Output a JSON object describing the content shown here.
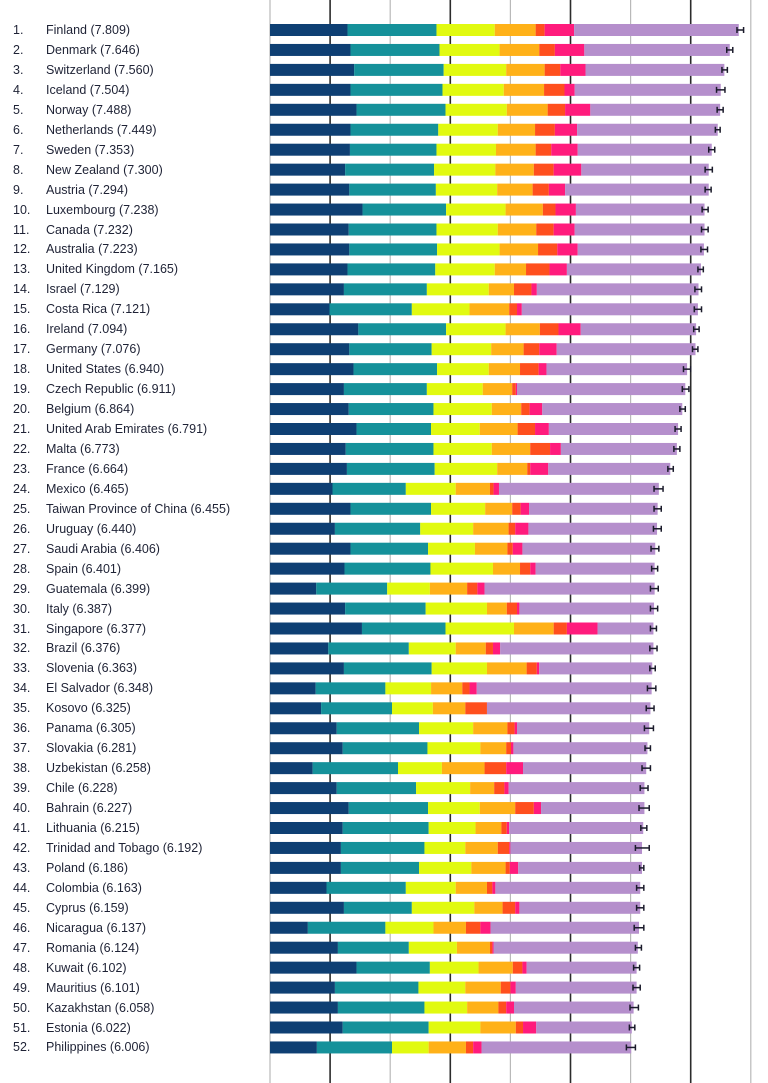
{
  "chart_data": {
    "type": "bar",
    "orientation": "horizontal",
    "stacked": true,
    "title": "",
    "xlabel": "",
    "ylabel": "",
    "xlim": [
      0,
      8.3
    ],
    "grid": true,
    "gridlines_at": [
      0,
      1,
      2,
      3,
      4,
      5,
      6,
      7,
      8
    ],
    "legend": "none",
    "segment_colors": [
      "#0e3f73",
      "#15919a",
      "#e1fa10",
      "#ffb118",
      "#ff4f1d",
      "#ff1b7c",
      "#b58fcc"
    ],
    "segment_names": [
      "segment-1",
      "segment-2",
      "segment-3",
      "segment-4",
      "segment-5",
      "segment-6",
      "segment-7"
    ],
    "rows": [
      {
        "rank": "1.",
        "country": "Finland",
        "score": "7.809",
        "segs": [
          1.29,
          1.48,
          0.97,
          0.68,
          0.15,
          0.49,
          2.74
        ],
        "err": [
          7.77,
          7.88
        ]
      },
      {
        "rank": "2.",
        "country": "Denmark",
        "score": "7.646",
        "segs": [
          1.34,
          1.48,
          1.0,
          0.66,
          0.26,
          0.49,
          2.42
        ],
        "err": [
          7.6,
          7.7
        ]
      },
      {
        "rank": "3.",
        "country": "Switzerland",
        "score": "7.560",
        "segs": [
          1.4,
          1.49,
          1.04,
          0.64,
          0.26,
          0.42,
          2.31
        ],
        "err": [
          7.52,
          7.61
        ]
      },
      {
        "rank": "4.",
        "country": "Iceland",
        "score": "7.504",
        "segs": [
          1.34,
          1.53,
          1.02,
          0.67,
          0.34,
          0.17,
          2.43
        ],
        "err": [
          7.43,
          7.57
        ]
      },
      {
        "rank": "5.",
        "country": "Norway",
        "score": "7.488",
        "segs": [
          1.44,
          1.48,
          1.02,
          0.68,
          0.29,
          0.42,
          2.16
        ],
        "err": [
          7.44,
          7.54
        ]
      },
      {
        "rank": "6.",
        "country": "Netherlands",
        "score": "7.449",
        "segs": [
          1.34,
          1.46,
          0.99,
          0.62,
          0.33,
          0.37,
          2.34
        ],
        "err": [
          7.41,
          7.49
        ]
      },
      {
        "rank": "7.",
        "country": "Sweden",
        "score": "7.353",
        "segs": [
          1.33,
          1.44,
          0.99,
          0.66,
          0.26,
          0.44,
          2.23
        ],
        "err": [
          7.3,
          7.4
        ]
      },
      {
        "rank": "8.",
        "country": "New Zealand",
        "score": "7.300",
        "segs": [
          1.25,
          1.48,
          1.02,
          0.64,
          0.33,
          0.46,
          2.12
        ],
        "err": [
          7.24,
          7.36
        ]
      },
      {
        "rank": "9.",
        "country": "Austria",
        "score": "7.294",
        "segs": [
          1.32,
          1.44,
          1.02,
          0.59,
          0.27,
          0.27,
          2.39
        ],
        "err": [
          7.24,
          7.34
        ]
      },
      {
        "rank": "10.",
        "country": "Luxembourg",
        "score": "7.238",
        "segs": [
          1.54,
          1.39,
          0.99,
          0.62,
          0.21,
          0.34,
          2.14
        ],
        "err": [
          7.19,
          7.29
        ]
      },
      {
        "rank": "11.",
        "country": "Canada",
        "score": "7.232",
        "segs": [
          1.31,
          1.46,
          1.02,
          0.64,
          0.29,
          0.35,
          2.16
        ],
        "err": [
          7.18,
          7.29
        ]
      },
      {
        "rank": "12.",
        "country": "Australia",
        "score": "7.223",
        "segs": [
          1.32,
          1.46,
          1.04,
          0.64,
          0.32,
          0.34,
          2.1
        ],
        "err": [
          7.17,
          7.28
        ]
      },
      {
        "rank": "13.",
        "country": "United Kingdom",
        "score": "7.165",
        "segs": [
          1.29,
          1.46,
          0.99,
          0.52,
          0.39,
          0.29,
          2.23
        ],
        "err": [
          7.12,
          7.21
        ]
      },
      {
        "rank": "14.",
        "country": "Israel",
        "score": "7.129",
        "segs": [
          1.23,
          1.38,
          1.03,
          0.42,
          0.29,
          0.09,
          2.69
        ],
        "err": [
          7.07,
          7.18
        ]
      },
      {
        "rank": "15.",
        "country": "Costa Rica",
        "score": "7.121",
        "segs": [
          0.99,
          1.37,
          0.96,
          0.66,
          0.13,
          0.08,
          2.93
        ],
        "err": [
          7.06,
          7.18
        ]
      },
      {
        "rank": "16.",
        "country": "Ireland",
        "score": "7.094",
        "segs": [
          1.47,
          1.46,
          0.99,
          0.57,
          0.31,
          0.37,
          1.92
        ],
        "err": [
          7.05,
          7.14
        ]
      },
      {
        "rank": "17.",
        "country": "Germany",
        "score": "7.076",
        "segs": [
          1.32,
          1.37,
          0.99,
          0.54,
          0.26,
          0.29,
          2.31
        ],
        "err": [
          7.03,
          7.12
        ]
      },
      {
        "rank": "18.",
        "country": "United States",
        "score": "6.940",
        "segs": [
          1.39,
          1.39,
          0.86,
          0.52,
          0.31,
          0.13,
          2.34
        ],
        "err": [
          6.88,
          7.0
        ]
      },
      {
        "rank": "19.",
        "country": "Czech Republic",
        "score": "6.911",
        "segs": [
          1.23,
          1.38,
          0.93,
          0.49,
          0.06,
          0.02,
          2.8
        ],
        "err": [
          6.86,
          6.97
        ]
      },
      {
        "rank": "20.",
        "country": "Belgium",
        "score": "6.864",
        "segs": [
          1.31,
          1.41,
          0.97,
          0.49,
          0.14,
          0.21,
          2.33
        ],
        "err": [
          6.82,
          6.91
        ]
      },
      {
        "rank": "21.",
        "country": "United Arab Emirates",
        "score": "6.791",
        "segs": [
          1.44,
          1.24,
          0.81,
          0.63,
          0.29,
          0.23,
          2.15
        ],
        "err": [
          6.74,
          6.84
        ]
      },
      {
        "rank": "22.",
        "country": "Malta",
        "score": "6.773",
        "segs": [
          1.26,
          1.46,
          0.97,
          0.64,
          0.33,
          0.18,
          1.93
        ],
        "err": [
          6.72,
          6.82
        ]
      },
      {
        "rank": "23.",
        "country": "France",
        "score": "6.664",
        "segs": [
          1.28,
          1.46,
          1.04,
          0.5,
          0.05,
          0.3,
          2.03
        ],
        "err": [
          6.62,
          6.71
        ]
      },
      {
        "rank": "24.",
        "country": "Mexico",
        "score": "6.465",
        "segs": [
          1.04,
          1.22,
          0.83,
          0.57,
          0.06,
          0.09,
          2.66
        ],
        "err": [
          6.39,
          6.54
        ]
      },
      {
        "rank": "25.",
        "country": "Taiwan Province of China",
        "score": "6.455",
        "segs": [
          1.34,
          1.34,
          0.9,
          0.45,
          0.14,
          0.14,
          2.14
        ],
        "err": [
          6.39,
          6.51
        ]
      },
      {
        "rank": "26.",
        "country": "Uruguay",
        "score": "6.440",
        "segs": [
          1.08,
          1.42,
          0.88,
          0.59,
          0.11,
          0.22,
          2.14
        ],
        "err": [
          6.38,
          6.51
        ]
      },
      {
        "rank": "27.",
        "country": "Saudi Arabia",
        "score": "6.406",
        "segs": [
          1.34,
          1.29,
          0.78,
          0.54,
          0.09,
          0.16,
          2.21
        ],
        "err": [
          6.34,
          6.47
        ]
      },
      {
        "rank": "28.",
        "country": "Spain",
        "score": "6.401",
        "segs": [
          1.24,
          1.43,
          1.04,
          0.45,
          0.17,
          0.09,
          1.98
        ],
        "err": [
          6.35,
          6.45
        ]
      },
      {
        "rank": "29.",
        "country": "Guatemala",
        "score": "6.399",
        "segs": [
          0.77,
          1.18,
          0.71,
          0.62,
          0.17,
          0.12,
          2.83
        ],
        "err": [
          6.33,
          6.46
        ]
      },
      {
        "rank": "30.",
        "country": "Italy",
        "score": "6.387",
        "segs": [
          1.25,
          1.34,
          1.02,
          0.33,
          0.17,
          0.04,
          2.24
        ],
        "err": [
          6.33,
          6.45
        ]
      },
      {
        "rank": "31.",
        "country": "Singapore",
        "score": "6.377",
        "segs": [
          1.53,
          1.39,
          1.14,
          0.66,
          0.22,
          0.51,
          0.93
        ],
        "err": [
          6.33,
          6.43
        ]
      },
      {
        "rank": "32.",
        "country": "Brazil",
        "score": "6.376",
        "segs": [
          0.97,
          1.34,
          0.78,
          0.5,
          0.12,
          0.12,
          2.55
        ],
        "err": [
          6.32,
          6.44
        ]
      },
      {
        "rank": "33.",
        "country": "Slovenia",
        "score": "6.363",
        "segs": [
          1.23,
          1.46,
          0.92,
          0.66,
          0.17,
          0.04,
          1.88
        ],
        "err": [
          6.32,
          6.41
        ]
      },
      {
        "rank": "34.",
        "country": "El Salvador",
        "score": "6.348",
        "segs": [
          0.76,
          1.16,
          0.76,
          0.52,
          0.12,
          0.12,
          2.91
        ],
        "err": [
          6.28,
          6.42
        ]
      },
      {
        "rank": "35.",
        "country": "Kosovo",
        "score": "6.325",
        "segs": [
          0.85,
          1.18,
          0.68,
          0.54,
          0.36,
          0.0,
          2.72
        ],
        "err": [
          6.26,
          6.39
        ]
      },
      {
        "rank": "36.",
        "country": "Panama",
        "score": "6.305",
        "segs": [
          1.11,
          1.37,
          0.9,
          0.57,
          0.12,
          0.04,
          2.2
        ],
        "err": [
          6.23,
          6.38
        ]
      },
      {
        "rank": "37.",
        "country": "Slovakia",
        "score": "6.281",
        "segs": [
          1.21,
          1.41,
          0.88,
          0.43,
          0.08,
          0.04,
          2.23
        ],
        "err": [
          6.24,
          6.33
        ]
      },
      {
        "rank": "38.",
        "country": "Uzbekistan",
        "score": "6.258",
        "segs": [
          0.71,
          1.42,
          0.73,
          0.71,
          0.36,
          0.28,
          2.05
        ],
        "err": [
          6.19,
          6.33
        ]
      },
      {
        "rank": "39.",
        "country": "Chile",
        "score": "6.228",
        "segs": [
          1.11,
          1.32,
          0.9,
          0.4,
          0.17,
          0.07,
          2.26
        ],
        "err": [
          6.16,
          6.29
        ]
      },
      {
        "rank": "40.",
        "country": "Bahrain",
        "score": "6.227",
        "segs": [
          1.31,
          1.32,
          0.86,
          0.59,
          0.31,
          0.12,
          1.72
        ],
        "err": [
          6.14,
          6.31
        ]
      },
      {
        "rank": "41.",
        "country": "Lithuania",
        "score": "6.215",
        "segs": [
          1.21,
          1.43,
          0.78,
          0.43,
          0.09,
          0.04,
          2.23
        ],
        "err": [
          6.17,
          6.27
        ]
      },
      {
        "rank": "42.",
        "country": "Trinidad and Tobago",
        "score": "6.192",
        "segs": [
          1.18,
          1.39,
          0.68,
          0.54,
          0.19,
          0.02,
          2.19
        ],
        "err": [
          6.08,
          6.31
        ]
      },
      {
        "rank": "43.",
        "country": "Poland",
        "score": "6.186",
        "segs": [
          1.18,
          1.3,
          0.87,
          0.57,
          0.07,
          0.14,
          2.06
        ],
        "err": [
          6.15,
          6.22
        ]
      },
      {
        "rank": "44.",
        "country": "Colombia",
        "score": "6.163",
        "segs": [
          0.94,
          1.32,
          0.83,
          0.52,
          0.09,
          0.05,
          2.41
        ],
        "err": [
          6.1,
          6.22
        ]
      },
      {
        "rank": "45.",
        "country": "Cyprus",
        "score": "6.159",
        "segs": [
          1.23,
          1.13,
          1.04,
          0.47,
          0.21,
          0.07,
          2.01
        ],
        "err": [
          6.1,
          6.22
        ]
      },
      {
        "rank": "46.",
        "country": "Nicaragua",
        "score": "6.137",
        "segs": [
          0.63,
          1.29,
          0.8,
          0.54,
          0.24,
          0.17,
          2.47
        ],
        "err": [
          6.06,
          6.22
        ]
      },
      {
        "rank": "47.",
        "country": "Romania",
        "score": "6.124",
        "segs": [
          1.13,
          1.18,
          0.8,
          0.55,
          0.04,
          0.02,
          2.4
        ],
        "err": [
          6.08,
          6.18
        ]
      },
      {
        "rank": "48.",
        "country": "Kuwait",
        "score": "6.102",
        "segs": [
          1.44,
          1.22,
          0.81,
          0.57,
          0.16,
          0.07,
          1.83
        ],
        "err": [
          6.05,
          6.15
        ]
      },
      {
        "rank": "49.",
        "country": "Mauritius",
        "score": "6.101",
        "segs": [
          1.08,
          1.39,
          0.78,
          0.59,
          0.16,
          0.09,
          2.01
        ],
        "err": [
          6.04,
          6.16
        ]
      },
      {
        "rank": "50.",
        "country": "Kazakhstan",
        "score": "6.058",
        "segs": [
          1.13,
          1.44,
          0.71,
          0.52,
          0.13,
          0.13,
          1.99
        ],
        "err": [
          5.99,
          6.13
        ]
      },
      {
        "rank": "51.",
        "country": "Estonia",
        "score": "6.022",
        "segs": [
          1.21,
          1.43,
          0.86,
          0.59,
          0.12,
          0.22,
          1.59
        ],
        "err": [
          5.98,
          6.07
        ]
      },
      {
        "rank": "52.",
        "country": "Philippines",
        "score": "6.006",
        "segs": [
          0.78,
          1.25,
          0.61,
          0.62,
          0.12,
          0.14,
          2.49
        ],
        "err": [
          5.93,
          6.08
        ]
      }
    ]
  }
}
